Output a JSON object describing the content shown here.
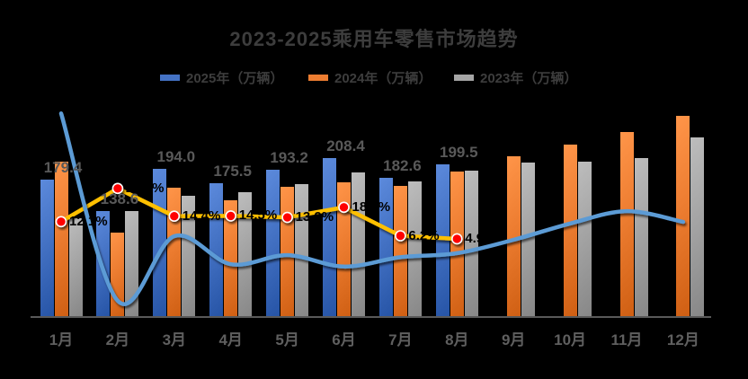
{
  "title": "2023-2025乘用车零售市场趋势",
  "colors": {
    "background": "#000000",
    "title_text": "#3d3d3d",
    "legend_text": "#3d3d3d",
    "bar_label_text": "#595959",
    "line_label_text": "#000000",
    "month_label_text": "#5f5f5f",
    "axis_line": "#595959",
    "bar_blue": "#4472C4",
    "bar_orange": "#ED7D31",
    "bar_gray": "#A5A5A5",
    "yoy_line_yellow": "#FFC000",
    "yoy_marker_red": "#FF0000",
    "trend_line_blue": "#5B9BD5"
  },
  "legend": {
    "position": "top",
    "items": [
      {
        "id": "legend-2025",
        "label": "2025年（万辆）",
        "color": "#4472C4",
        "x": 178
      },
      {
        "id": "legend-2024",
        "label": "2024年（万辆）",
        "color": "#ED7D31",
        "x": 343
      },
      {
        "id": "legend-2023",
        "label": "2023年（万辆）",
        "color": "#A5A5A5",
        "x": 505
      }
    ]
  },
  "chart_data": {
    "type": "bar",
    "title": "2023-2025乘用车零售市场趋势",
    "categories": [
      "1月",
      "2月",
      "3月",
      "4月",
      "5月",
      "6月",
      "7月",
      "8月",
      "9月",
      "10月",
      "11月",
      "12月"
    ],
    "grid": false,
    "legend_position": "top",
    "value_axis": {
      "visible": false,
      "unit": "万辆",
      "min": 0,
      "max": 290
    },
    "percent_axis": {
      "visible": false,
      "unit": "%",
      "min": -30,
      "max": 65
    },
    "series": [
      {
        "id": "bars-2025",
        "name": "2025年（万辆）",
        "type": "bar",
        "color": "#4472C4",
        "values": [
          179.4,
          138.6,
          194.0,
          175.5,
          193.2,
          208.4,
          182.6,
          199.5,
          null,
          null,
          null,
          null
        ],
        "data_labels": [
          "179.4",
          "138.6",
          "194.0",
          "175.5",
          "193.2",
          "208.4",
          "182.6",
          "199.5",
          null,
          null,
          null,
          null
        ]
      },
      {
        "id": "bars-2024",
        "name": "2024年（万辆）",
        "type": "bar",
        "color": "#ED7D31",
        "values": [
          203.5,
          109.5,
          168.7,
          153.2,
          171.0,
          176.7,
          172.0,
          190.5,
          210.9,
          226.1,
          242.3,
          263.5
        ],
        "data_labels": null
      },
      {
        "id": "bars-2023",
        "name": "2023年（万辆）",
        "type": "bar",
        "color": "#A5A5A5",
        "values": [
          129.3,
          139.0,
          158.7,
          163.0,
          174.2,
          189.4,
          177.5,
          192.0,
          201.8,
          203.0,
          208.1,
          235.3
        ],
        "data_labels": null
      },
      {
        "id": "yoy-marker-line",
        "type": "line",
        "axis": "percent",
        "smooth": false,
        "color": "#FFC000",
        "marker_color": "#FF0000",
        "values": [
          12.1,
          26.0,
          14.4,
          14.5,
          13.9,
          18.1,
          6.2,
          4.9,
          null,
          null,
          null,
          null
        ],
        "data_labels": [
          "12.1%",
          "26.0%",
          "14.4%",
          "14.5%",
          "13.9%",
          "18.1%",
          "6.2%",
          "4.9%",
          null,
          null,
          null,
          null
        ]
      },
      {
        "id": "trend-line",
        "type": "line",
        "axis": "percent",
        "smooth": true,
        "color": "#5B9BD5",
        "marker_color": null,
        "values": [
          57.4,
          -21.0,
          6.0,
          -5.7,
          -1.9,
          -6.7,
          -2.8,
          -1.1,
          4.5,
          11.3,
          16.5,
          12.0
        ],
        "data_labels": null
      }
    ]
  }
}
